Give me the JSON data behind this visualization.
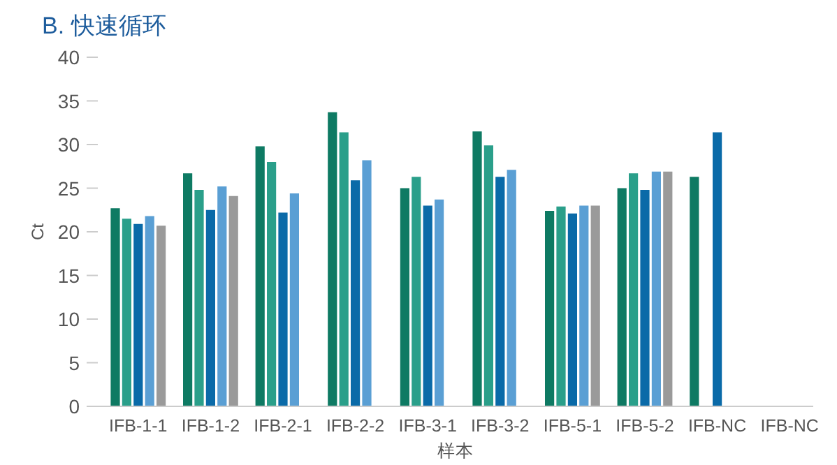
{
  "chart_data": {
    "type": "bar",
    "title": "B. 快速循环",
    "xlabel": "样本",
    "ylabel": "Ct",
    "categories": [
      "IFB-1-1",
      "IFB-1-2",
      "IFB-2-1",
      "IFB-2-2",
      "IFB-3-1",
      "IFB-3-2",
      "IFB-5-1",
      "IFB-5-2",
      "IFB-NC",
      "IFB-NC"
    ],
    "ylim": [
      0,
      40
    ],
    "yticks": [
      0,
      5,
      10,
      15,
      20,
      25,
      30,
      35,
      40
    ],
    "series": [
      {
        "color": "#0e7a63",
        "values": [
          22.7,
          26.7,
          29.8,
          33.7,
          25.0,
          31.5,
          22.4,
          25.0,
          26.3,
          null
        ]
      },
      {
        "color": "#2a9f8a",
        "values": [
          21.5,
          24.8,
          28.0,
          31.4,
          26.3,
          29.9,
          22.9,
          26.7,
          null,
          null
        ]
      },
      {
        "color": "#0a6aa8",
        "values": [
          20.9,
          22.5,
          22.2,
          25.9,
          23.0,
          26.3,
          22.1,
          24.8,
          31.4,
          null
        ]
      },
      {
        "color": "#5a9fd4",
        "values": [
          21.8,
          25.2,
          24.4,
          28.2,
          23.7,
          27.1,
          23.0,
          26.9,
          null,
          null
        ]
      },
      {
        "color": "#9a9a9a",
        "values": [
          20.7,
          24.1,
          null,
          null,
          null,
          null,
          23.0,
          26.9,
          null,
          null
        ]
      }
    ]
  }
}
